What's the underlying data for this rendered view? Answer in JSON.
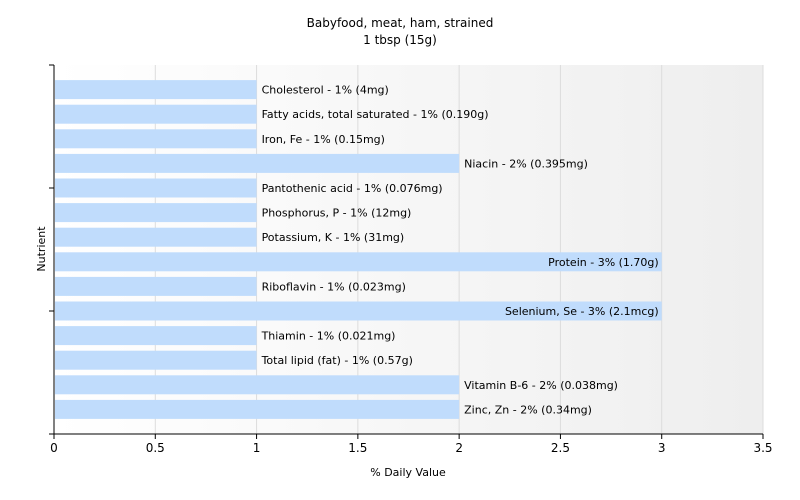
{
  "chart_data": {
    "type": "bar",
    "orientation": "horizontal",
    "title": "Babyfood, meat, ham, strained",
    "subtitle": "1 tbsp (15g)",
    "xlabel": "% Daily Value",
    "ylabel": "Nutrient",
    "xlim": [
      0,
      3.5
    ],
    "xticks": [
      "0",
      "0.5",
      "1",
      "1.5",
      "2",
      "2.5",
      "3",
      "3.5"
    ],
    "grid": true,
    "bar_color": "#c0dcfc",
    "categories": [
      "Cholesterol",
      "Fatty acids, total saturated",
      "Iron, Fe",
      "Niacin",
      "Pantothenic acid",
      "Phosphorus, P",
      "Potassium, K",
      "Protein",
      "Riboflavin",
      "Selenium, Se",
      "Thiamin",
      "Total lipid (fat)",
      "Vitamin B-6",
      "Zinc, Zn"
    ],
    "values": [
      1,
      1,
      1,
      2,
      1,
      1,
      1,
      3,
      1,
      3,
      1,
      1,
      2,
      2
    ],
    "labels": [
      "Cholesterol - 1% (4mg)",
      "Fatty acids, total saturated - 1% (0.190g)",
      "Iron, Fe - 1% (0.15mg)",
      "Niacin - 2% (0.395mg)",
      "Pantothenic acid - 1% (0.076mg)",
      "Phosphorus, P - 1% (12mg)",
      "Potassium, K - 1% (31mg)",
      "Protein - 3% (1.70g)",
      "Riboflavin - 1% (0.023mg)",
      "Selenium, Se - 3% (2.1mcg)",
      "Thiamin - 1% (0.021mg)",
      "Total lipid (fat) - 1% (0.57g)",
      "Vitamin B-6 - 2% (0.038mg)",
      "Zinc, Zn - 2% (0.34mg)"
    ]
  }
}
